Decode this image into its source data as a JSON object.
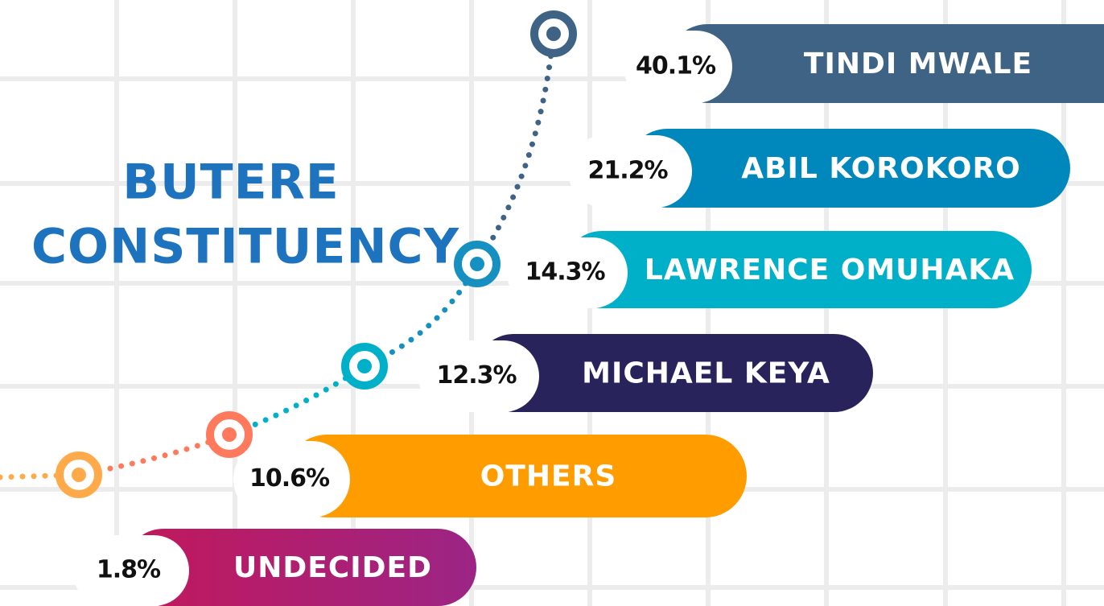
{
  "title": [
    "BUTERE",
    "CONSTITUENCY"
  ],
  "entries": [
    {
      "name": "TINDI MWALE",
      "share": "40.1%"
    },
    {
      "name": "ABIL KOROKORO",
      "share": "21.2%"
    },
    {
      "name": "LAWRENCE OMUHAKA",
      "share": "14.3%"
    },
    {
      "name": "MICHAEL KEYA",
      "share": "12.3%"
    },
    {
      "name": "OTHERS",
      "share": "10.6%"
    },
    {
      "name": "UNDECIDED",
      "share": "1.8%"
    }
  ]
}
